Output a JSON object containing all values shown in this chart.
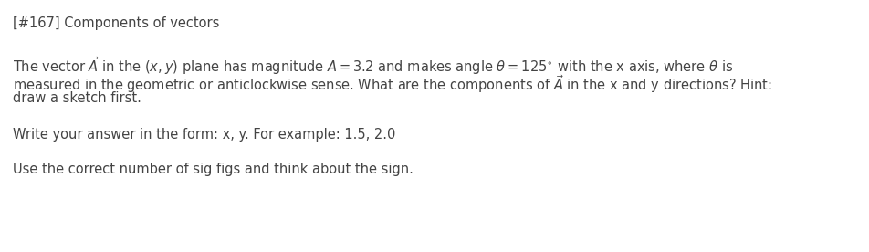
{
  "title": "[#167] Components of vectors",
  "line1": "The vector $\\vec{A}$ in the $(x, y)$ plane has magnitude $A = 3.2$ and makes angle $\\theta = 125^{\\circ}$ with the x axis, where $\\theta$ is",
  "line2": "measured in the geometric or anticlockwise sense. What are the components of $\\vec{A}$ in the x and y directions? Hint:",
  "line3": "draw a sketch first.",
  "line4": "Write your answer in the form: x, y. For example: 1.5, 2.0",
  "line5": "Use the correct number of sig figs and think about the sign.",
  "title_fontsize": 10.5,
  "body_fontsize": 10.5,
  "text_color": "#444444",
  "background_color": "#ffffff",
  "fig_width": 9.52,
  "fig_height": 2.76,
  "dpi": 100
}
